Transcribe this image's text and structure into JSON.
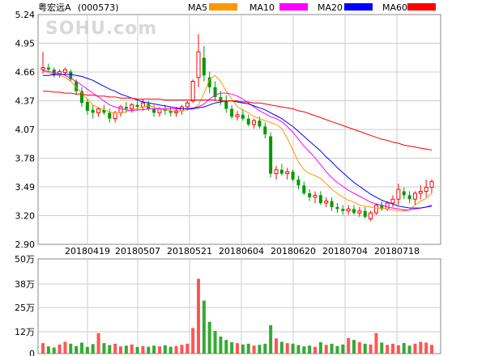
{
  "header": {
    "stock_name": "粤宏远A",
    "stock_code": "(000573)",
    "watermark": "SOHU.com"
  },
  "legend": [
    {
      "name": "MA5",
      "color": "#ff9900"
    },
    {
      "name": "MA10",
      "color": "#ff00ff"
    },
    {
      "name": "MA20",
      "color": "#0000ff"
    },
    {
      "name": "MA60",
      "color": "#ff0000"
    }
  ],
  "colors": {
    "up": "#ff0000",
    "down": "#009900",
    "volume_up": "#ff5555",
    "volume_down": "#33aa33",
    "grid": "#cccccc",
    "border": "#888888"
  },
  "chart_data": [
    {
      "type": "candlestick",
      "title": "粤宏远A (000573)",
      "y_ticks": [
        "5.24",
        "4.95",
        "4.66",
        "4.37",
        "4.07",
        "3.78",
        "3.49",
        "3.20",
        "2.90"
      ],
      "ylim": [
        2.9,
        5.24
      ],
      "x_ticks": [
        "20180419",
        "20180507",
        "20180521",
        "20180604",
        "20180620",
        "20180704",
        "20180718"
      ],
      "series": [
        {
          "name": "MA5",
          "values": [
            4.66,
            4.65,
            4.63,
            4.62,
            4.6,
            4.56,
            4.5,
            4.44,
            4.38,
            4.32,
            4.29,
            4.27,
            4.25,
            4.24,
            4.24,
            4.25,
            4.27,
            4.28,
            4.3,
            4.31,
            4.3,
            4.28,
            4.27,
            4.26,
            4.25,
            4.26,
            4.27,
            4.28,
            4.32,
            4.44,
            4.58,
            4.62,
            4.56,
            4.46,
            4.38,
            4.3,
            4.27,
            4.24,
            4.2,
            4.18,
            4.16,
            4.14,
            4.12,
            4.08,
            3.98,
            3.86,
            3.74,
            3.66,
            3.62,
            3.6,
            3.57,
            3.52,
            3.46,
            3.42,
            3.38,
            3.35,
            3.33,
            3.3,
            3.29,
            3.28,
            3.27,
            3.27,
            3.26,
            3.25,
            3.24,
            3.24,
            3.25,
            3.3,
            3.34,
            3.37,
            3.42
          ]
        },
        {
          "name": "MA10",
          "values": [
            4.67,
            4.66,
            4.65,
            4.64,
            4.62,
            4.59,
            4.56,
            4.52,
            4.48,
            4.44,
            4.4,
            4.36,
            4.32,
            4.3,
            4.28,
            4.27,
            4.26,
            4.27,
            4.27,
            4.28,
            4.28,
            4.28,
            4.28,
            4.28,
            4.28,
            4.28,
            4.28,
            4.29,
            4.3,
            4.33,
            4.38,
            4.42,
            4.44,
            4.44,
            4.43,
            4.41,
            4.38,
            4.34,
            4.3,
            4.26,
            4.23,
            4.2,
            4.18,
            4.15,
            4.1,
            4.04,
            3.97,
            3.9,
            3.84,
            3.78,
            3.71,
            3.64,
            3.58,
            3.53,
            3.49,
            3.45,
            3.42,
            3.39,
            3.36,
            3.33,
            3.31,
            3.3,
            3.28,
            3.27,
            3.26,
            3.25,
            3.25,
            3.26,
            3.27,
            3.28,
            3.3
          ]
        },
        {
          "name": "MA20",
          "values": [
            4.62,
            4.62,
            4.63,
            4.63,
            4.63,
            4.63,
            4.62,
            4.61,
            4.59,
            4.57,
            4.54,
            4.51,
            4.48,
            4.46,
            4.43,
            4.41,
            4.39,
            4.37,
            4.35,
            4.34,
            4.33,
            4.32,
            4.31,
            4.3,
            4.29,
            4.28,
            4.28,
            4.28,
            4.29,
            4.3,
            4.32,
            4.34,
            4.35,
            4.36,
            4.36,
            4.35,
            4.34,
            4.33,
            4.31,
            4.29,
            4.27,
            4.24,
            4.21,
            4.18,
            4.14,
            4.1,
            4.05,
            4.0,
            3.95,
            3.9,
            3.85,
            3.79,
            3.74,
            3.68,
            3.63,
            3.58,
            3.53,
            3.49,
            3.45,
            3.41,
            3.38,
            3.35,
            3.33,
            3.31,
            3.29,
            3.28,
            3.27,
            3.27,
            3.27,
            3.28,
            3.29
          ]
        },
        {
          "name": "MA60",
          "values": [
            4.46,
            4.46,
            4.45,
            4.45,
            4.44,
            4.44,
            4.43,
            4.43,
            4.42,
            4.42,
            4.41,
            4.41,
            4.4,
            4.4,
            4.39,
            4.39,
            4.39,
            4.38,
            4.38,
            4.38,
            4.38,
            4.38,
            4.37,
            4.37,
            4.37,
            4.37,
            4.37,
            4.37,
            4.37,
            4.37,
            4.37,
            4.37,
            4.36,
            4.36,
            4.36,
            4.36,
            4.35,
            4.35,
            4.34,
            4.34,
            4.33,
            4.32,
            4.31,
            4.3,
            4.29,
            4.28,
            4.26,
            4.25,
            4.23,
            4.21,
            4.19,
            4.17,
            4.15,
            4.13,
            4.11,
            4.09,
            4.07,
            4.05,
            4.03,
            4.01,
            3.99,
            3.97,
            3.96,
            3.94,
            3.93,
            3.91,
            3.9,
            3.89,
            3.88,
            3.87,
            3.86
          ]
        }
      ],
      "ohlc": [
        [
          4.68,
          4.86,
          4.64,
          4.7
        ],
        [
          4.7,
          4.74,
          4.66,
          4.68
        ],
        [
          4.68,
          4.7,
          4.6,
          4.62
        ],
        [
          4.63,
          4.68,
          4.6,
          4.66
        ],
        [
          4.65,
          4.7,
          4.62,
          4.68
        ],
        [
          4.66,
          4.68,
          4.56,
          4.58
        ],
        [
          4.56,
          4.58,
          4.42,
          4.46
        ],
        [
          4.46,
          4.5,
          4.3,
          4.34
        ],
        [
          4.35,
          4.38,
          4.22,
          4.26
        ],
        [
          4.27,
          4.32,
          4.18,
          4.24
        ],
        [
          4.24,
          4.3,
          4.2,
          4.28
        ],
        [
          4.27,
          4.32,
          4.22,
          4.24
        ],
        [
          4.24,
          4.28,
          4.14,
          4.18
        ],
        [
          4.18,
          4.26,
          4.14,
          4.24
        ],
        [
          4.24,
          4.32,
          4.2,
          4.3
        ],
        [
          4.3,
          4.35,
          4.24,
          4.28
        ],
        [
          4.28,
          4.34,
          4.24,
          4.32
        ],
        [
          4.32,
          4.36,
          4.26,
          4.3
        ],
        [
          4.3,
          4.38,
          4.26,
          4.34
        ],
        [
          4.33,
          4.36,
          4.26,
          4.28
        ],
        [
          4.28,
          4.32,
          4.2,
          4.24
        ],
        [
          4.24,
          4.3,
          4.2,
          4.28
        ],
        [
          4.28,
          4.32,
          4.22,
          4.26
        ],
        [
          4.26,
          4.3,
          4.2,
          4.24
        ],
        [
          4.24,
          4.3,
          4.2,
          4.26
        ],
        [
          4.26,
          4.32,
          4.22,
          4.3
        ],
        [
          4.3,
          4.36,
          4.26,
          4.34
        ],
        [
          4.36,
          4.58,
          4.34,
          4.56
        ],
        [
          4.6,
          5.04,
          4.5,
          4.86
        ],
        [
          4.8,
          4.92,
          4.56,
          4.62
        ],
        [
          4.6,
          4.66,
          4.44,
          4.5
        ],
        [
          4.5,
          4.56,
          4.36,
          4.4
        ],
        [
          4.4,
          4.46,
          4.32,
          4.36
        ],
        [
          4.36,
          4.42,
          4.24,
          4.28
        ],
        [
          4.28,
          4.32,
          4.18,
          4.2
        ],
        [
          4.2,
          4.26,
          4.16,
          4.22
        ],
        [
          4.22,
          4.28,
          4.16,
          4.18
        ],
        [
          4.18,
          4.22,
          4.1,
          4.12
        ],
        [
          4.12,
          4.18,
          4.08,
          4.16
        ],
        [
          4.16,
          4.2,
          4.08,
          4.1
        ],
        [
          4.1,
          4.14,
          3.98,
          4.02
        ],
        [
          4.0,
          4.04,
          3.58,
          3.62
        ],
        [
          3.62,
          3.7,
          3.56,
          3.66
        ],
        [
          3.66,
          3.72,
          3.6,
          3.62
        ],
        [
          3.62,
          3.68,
          3.56,
          3.64
        ],
        [
          3.64,
          3.66,
          3.54,
          3.56
        ],
        [
          3.56,
          3.6,
          3.46,
          3.5
        ],
        [
          3.5,
          3.54,
          3.4,
          3.42
        ],
        [
          3.42,
          3.46,
          3.34,
          3.38
        ],
        [
          3.38,
          3.44,
          3.32,
          3.4
        ],
        [
          3.4,
          3.44,
          3.3,
          3.32
        ],
        [
          3.32,
          3.38,
          3.28,
          3.34
        ],
        [
          3.34,
          3.38,
          3.24,
          3.28
        ],
        [
          3.28,
          3.32,
          3.22,
          3.26
        ],
        [
          3.26,
          3.3,
          3.2,
          3.24
        ],
        [
          3.24,
          3.3,
          3.2,
          3.26
        ],
        [
          3.26,
          3.3,
          3.2,
          3.22
        ],
        [
          3.22,
          3.28,
          3.18,
          3.24
        ],
        [
          3.24,
          3.28,
          3.16,
          3.18
        ],
        [
          3.16,
          3.24,
          3.14,
          3.22
        ],
        [
          3.22,
          3.32,
          3.2,
          3.3
        ],
        [
          3.3,
          3.34,
          3.24,
          3.26
        ],
        [
          3.26,
          3.34,
          3.24,
          3.32
        ],
        [
          3.32,
          3.4,
          3.28,
          3.36
        ],
        [
          3.36,
          3.52,
          3.3,
          3.46
        ],
        [
          3.44,
          3.48,
          3.36,
          3.4
        ],
        [
          3.4,
          3.44,
          3.32,
          3.36
        ],
        [
          3.36,
          3.44,
          3.3,
          3.42
        ],
        [
          3.42,
          3.5,
          3.36,
          3.44
        ],
        [
          3.44,
          3.56,
          3.38,
          3.48
        ],
        [
          3.48,
          3.56,
          3.42,
          3.54
        ]
      ]
    },
    {
      "type": "bar",
      "title": "",
      "y_ticks": [
        "50万",
        "38万",
        "25万",
        "12万",
        "0"
      ],
      "ylim": [
        0,
        500000
      ],
      "values": [
        55000,
        38000,
        32000,
        48000,
        62000,
        52000,
        40000,
        58000,
        35000,
        50000,
        108000,
        55000,
        45000,
        52000,
        38000,
        42000,
        48000,
        35000,
        40000,
        36000,
        42000,
        38000,
        44000,
        36000,
        40000,
        46000,
        52000,
        135000,
        395000,
        280000,
        168000,
        120000,
        90000,
        72000,
        60000,
        55000,
        48000,
        52000,
        42000,
        46000,
        52000,
        150000,
        80000,
        62000,
        55000,
        52000,
        45000,
        38000,
        42000,
        36000,
        60000,
        46000,
        52000,
        40000,
        48000,
        82000,
        72000,
        60000,
        52000,
        48000,
        108000,
        58000,
        46000,
        52000,
        44000,
        56000,
        42000,
        52000,
        62000,
        58000,
        46000
      ]
    }
  ]
}
